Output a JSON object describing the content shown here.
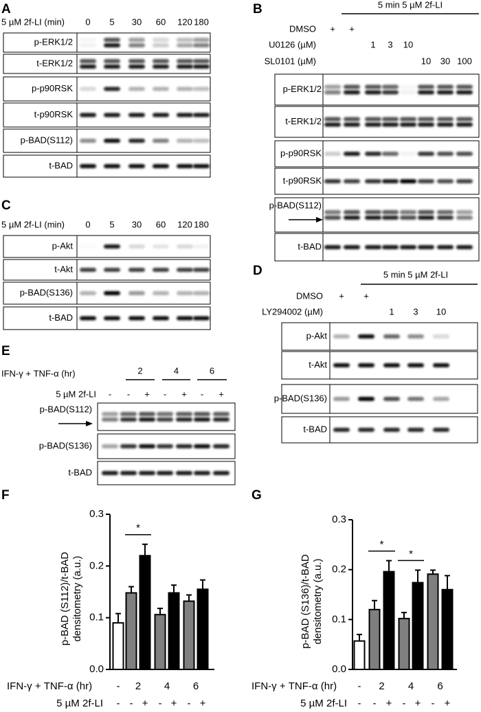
{
  "panels": {
    "A": {
      "letter": "A",
      "treatment": "5 µM 2f-LI (min)",
      "lanes": [
        "0",
        "5",
        "30",
        "60",
        "120",
        "180"
      ],
      "rows": [
        "p-ERK1/2",
        "t-ERK1/2",
        "p-p90RSK",
        "t-p90RSK",
        "p-BAD(S112)",
        "t-BAD"
      ]
    },
    "B": {
      "letter": "B",
      "header": "5 min 5 µM 2f-LI",
      "conditions": [
        {
          "label": "DMSO",
          "marks": [
            "+",
            "+",
            null,
            null,
            null,
            null,
            null,
            null
          ]
        },
        {
          "label": "U0126 (µM)",
          "marks": [
            null,
            null,
            "1",
            "3",
            "10",
            null,
            null,
            null
          ]
        },
        {
          "label": "SL0101 (µM)",
          "marks": [
            null,
            null,
            null,
            null,
            null,
            "10",
            "30",
            "100"
          ]
        }
      ],
      "rows": [
        "p-ERK1/2",
        "t-ERK1/2",
        "p-p90RSK",
        "t-p90RSK",
        "p-BAD(S112)",
        "t-BAD"
      ]
    },
    "C": {
      "letter": "C",
      "treatment": "5 µM 2f-LI (min)",
      "lanes": [
        "0",
        "5",
        "30",
        "60",
        "120",
        "180"
      ],
      "rows": [
        "p-Akt",
        "t-Akt",
        "p-BAD(S136)",
        "t-BAD"
      ]
    },
    "D": {
      "letter": "D",
      "header": "5 min 5 µM 2f-LI",
      "conditions": [
        {
          "label": "DMSO",
          "marks": [
            "+",
            "+",
            null,
            null,
            null
          ]
        },
        {
          "label": "LY294002 (µM)",
          "marks": [
            null,
            null,
            "1",
            "3",
            "10"
          ]
        }
      ],
      "rows": [
        "p-Akt",
        "t-Akt",
        "p-BAD(S136)",
        "t-BAD"
      ]
    },
    "E": {
      "letter": "E",
      "treatment": "IFN-γ  + TNF-α (hr)",
      "groups": [
        "2",
        "4",
        "6"
      ],
      "drug": "5 µM 2f-LI",
      "drug_marks": [
        "-",
        "-",
        "+",
        "-",
        "+",
        "-",
        "+"
      ],
      "rows": [
        "p-BAD(S112)",
        "p-BAD(S136)",
        "t-BAD"
      ]
    }
  },
  "chart_data": [
    {
      "type": "bar",
      "letter": "F",
      "y_label": [
        "p-BAD (S112)/t-BAD",
        "densitometry (a.u.)"
      ],
      "group_label": "IFN-γ + TNF-α (hr)",
      "groups": [
        "-",
        "2",
        "4",
        "6"
      ],
      "x_label": "5 µM 2f-LI",
      "categories": [
        "-",
        "-",
        "+",
        "-",
        "+",
        "-",
        "+"
      ],
      "values": [
        0.09,
        0.148,
        0.22,
        0.106,
        0.148,
        0.132,
        0.155
      ],
      "errors": [
        0.018,
        0.012,
        0.022,
        0.012,
        0.015,
        0.012,
        0.018
      ],
      "colors": [
        "#ffffff",
        "#7f7f7f",
        "#000000",
        "#7f7f7f",
        "#000000",
        "#7f7f7f",
        "#000000"
      ],
      "ylim": [
        0,
        0.3
      ],
      "yticks": [
        {
          "value": 0,
          "label": "0.0"
        },
        0.1,
        0.2,
        0.3
      ],
      "annotations": [
        {
          "text": "*",
          "bars": [
            1,
            2
          ]
        }
      ]
    },
    {
      "type": "bar",
      "letter": "G",
      "y_label": [
        "p-BAD (S136)/t-BAD",
        "densitometry (a.u.)"
      ],
      "group_label": "IFN-γ + TNF-α (hr)",
      "groups": [
        "-",
        "2",
        "4",
        "6"
      ],
      "x_label": "5 µM 2f-LI",
      "categories": [
        "-",
        "-",
        "+",
        "-",
        "+",
        "-",
        "+"
      ],
      "values": [
        0.057,
        0.12,
        0.196,
        0.102,
        0.174,
        0.191,
        0.16
      ],
      "errors": [
        0.013,
        0.018,
        0.022,
        0.012,
        0.025,
        0.008,
        0.028
      ],
      "colors": [
        "#ffffff",
        "#7f7f7f",
        "#000000",
        "#7f7f7f",
        "#000000",
        "#7f7f7f",
        "#000000"
      ],
      "ylim": [
        0,
        0.3
      ],
      "yticks": [
        {
          "value": 0,
          "label": "0.0"
        },
        0.1,
        0.2,
        0.3
      ],
      "annotations": [
        {
          "text": "*",
          "bars": [
            1,
            2
          ]
        },
        {
          "text": "*",
          "bars": [
            3,
            4
          ]
        }
      ]
    }
  ]
}
